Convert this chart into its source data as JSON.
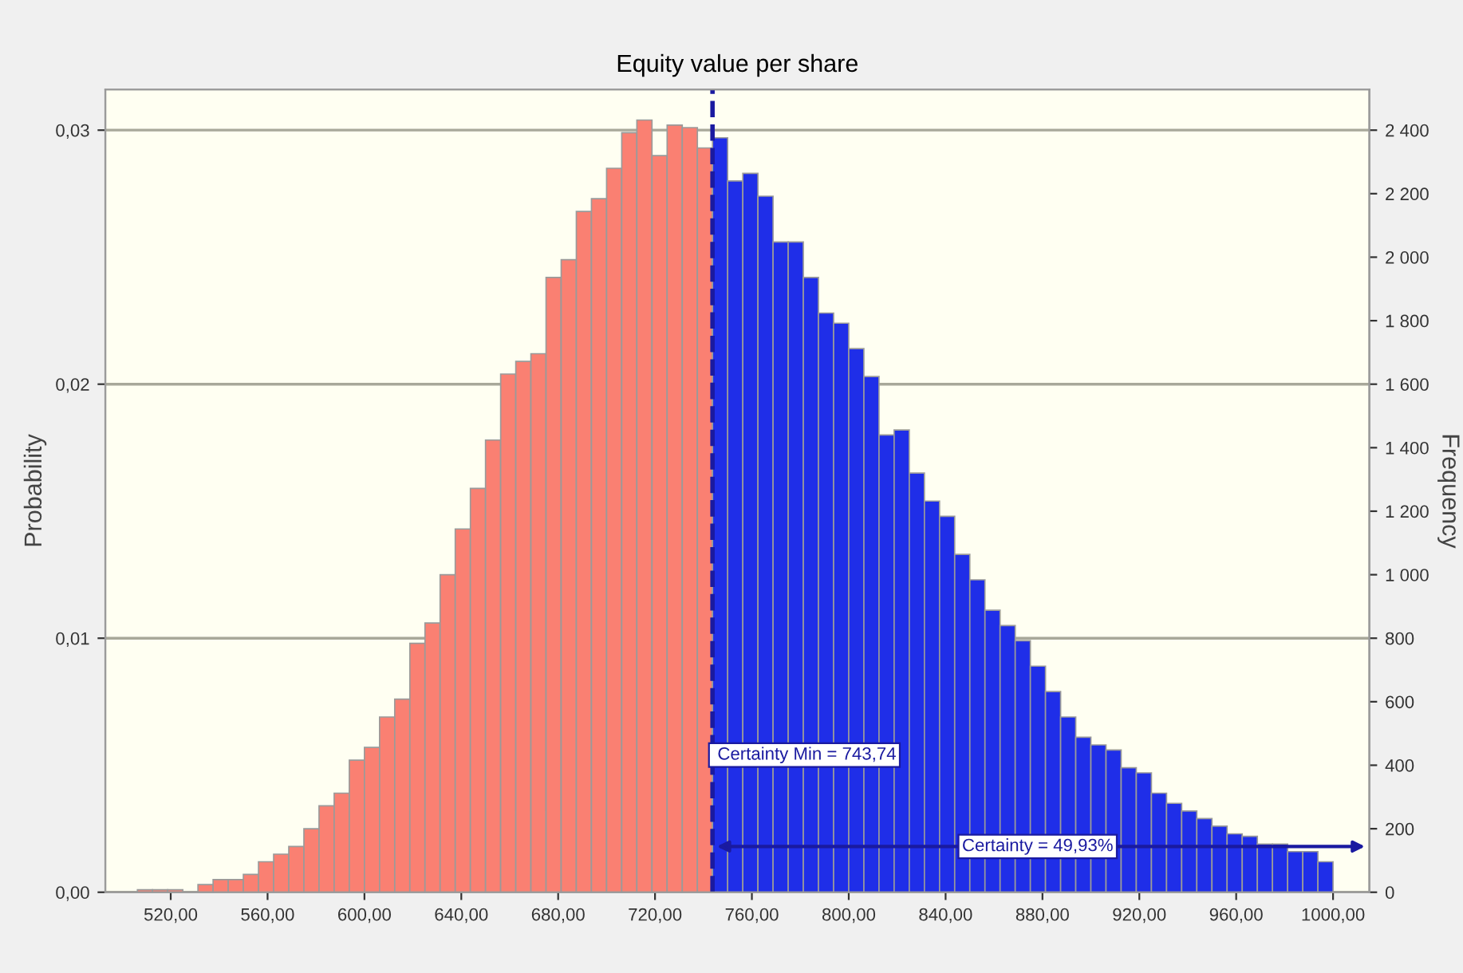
{
  "chart_data": {
    "type": "histogram",
    "title": "Equity value per share",
    "ylabel": "Probability",
    "y2label": "Frequency",
    "bins": [
      506.25,
      512.5,
      518.75,
      525,
      531.25,
      537.5,
      543.75,
      550,
      556.25,
      562.5,
      568.75,
      575,
      581.25,
      587.5,
      593.75,
      600,
      606.25,
      612.5,
      618.75,
      625,
      631.25,
      637.5,
      643.75,
      650,
      656.25,
      662.5,
      668.75,
      675,
      681.25,
      687.5,
      693.75,
      700,
      706.25,
      712.5,
      718.75,
      725,
      731.25,
      737.5,
      743.75,
      750,
      756.25,
      762.5,
      768.75,
      775,
      781.25,
      787.5,
      793.75,
      800,
      806.25,
      812.5,
      818.75,
      825,
      831.25,
      837.5,
      843.75,
      850,
      856.25,
      862.5,
      868.75,
      875,
      881.25,
      887.5,
      893.75,
      900,
      906.25,
      912.5,
      918.75,
      925,
      931.25,
      937.5,
      943.75,
      950,
      956.25,
      962.5,
      968.75,
      975,
      981.25,
      987.5,
      993.75,
      1000
    ],
    "values": [
      0.0001,
      0.0001,
      0.0001,
      0,
      0.0003,
      0.0005,
      0.0005,
      0.0007,
      0.0012,
      0.0015,
      0.0018,
      0.0025,
      0.0034,
      0.0039,
      0.0052,
      0.0057,
      0.0069,
      0.0076,
      0.0098,
      0.0106,
      0.0125,
      0.0143,
      0.0159,
      0.0178,
      0.0204,
      0.0209,
      0.0212,
      0.0242,
      0.0249,
      0.0268,
      0.0273,
      0.0285,
      0.0299,
      0.0304,
      0.029,
      0.0302,
      0.0301,
      0.0293,
      0.0297,
      0.028,
      0.0283,
      0.0274,
      0.0256,
      0.0256,
      0.0242,
      0.0228,
      0.0224,
      0.0214,
      0.0203,
      0.018,
      0.0182,
      0.0165,
      0.0154,
      0.0148,
      0.0133,
      0.0123,
      0.0111,
      0.0105,
      0.0099,
      0.0089,
      0.0079,
      0.0069,
      0.0061,
      0.0058,
      0.0056,
      0.0049,
      0.0047,
      0.0039,
      0.0035,
      0.0032,
      0.0029,
      0.0026,
      0.0023,
      0.0022,
      0.0019,
      0.0019,
      0.0016,
      0.0016,
      0.0012
    ],
    "colors": [
      "#fa8072",
      "#fa8072",
      "#fa8072",
      "#fa8072",
      "#fa8072",
      "#fa8072",
      "#fa8072",
      "#fa8072",
      "#fa8072",
      "#fa8072",
      "#fa8072",
      "#fa8072",
      "#fa8072",
      "#fa8072",
      "#fa8072",
      "#fa8072",
      "#fa8072",
      "#fa8072",
      "#fa8072",
      "#fa8072",
      "#fa8072",
      "#fa8072",
      "#fa8072",
      "#fa8072",
      "#fa8072",
      "#fa8072",
      "#fa8072",
      "#fa8072",
      "#fa8072",
      "#fa8072",
      "#fa8072",
      "#fa8072",
      "#fa8072",
      "#fa8072",
      "#fa8072",
      "#fa8072",
      "#fa8072",
      "#fa8072",
      "#1f2ee8",
      "#1f2ee8",
      "#1f2ee8",
      "#1f2ee8",
      "#1f2ee8",
      "#1f2ee8",
      "#1f2ee8",
      "#1f2ee8",
      "#1f2ee8",
      "#1f2ee8",
      "#1f2ee8",
      "#1f2ee8",
      "#1f2ee8",
      "#1f2ee8",
      "#1f2ee8",
      "#1f2ee8",
      "#1f2ee8",
      "#1f2ee8",
      "#1f2ee8",
      "#1f2ee8",
      "#1f2ee8",
      "#1f2ee8",
      "#1f2ee8",
      "#1f2ee8",
      "#1f2ee8",
      "#1f2ee8",
      "#1f2ee8",
      "#1f2ee8",
      "#1f2ee8",
      "#1f2ee8",
      "#1f2ee8",
      "#1f2ee8",
      "#1f2ee8",
      "#1f2ee8",
      "#1f2ee8",
      "#1f2ee8",
      "#1f2ee8",
      "#1f2ee8",
      "#1f2ee8",
      "#1f2ee8",
      "#1f2ee8"
    ],
    "xlim": [
      493,
      1015
    ],
    "xticks": [
      {
        "value": 520,
        "label": "520,00"
      },
      {
        "value": 560,
        "label": "560,00"
      },
      {
        "value": 600,
        "label": "600,00"
      },
      {
        "value": 640,
        "label": "640,00"
      },
      {
        "value": 680,
        "label": "680,00"
      },
      {
        "value": 720,
        "label": "720,00"
      },
      {
        "value": 760,
        "label": "760,00"
      },
      {
        "value": 800,
        "label": "800,00"
      },
      {
        "value": 840,
        "label": "840,00"
      },
      {
        "value": 880,
        "label": "880,00"
      },
      {
        "value": 920,
        "label": "920,00"
      },
      {
        "value": 960,
        "label": "960,00"
      },
      {
        "value": 1000,
        "label": "1000,00"
      }
    ],
    "ylim": [
      0,
      0.0316
    ],
    "yticks": [
      {
        "value": 0,
        "label": "0,00"
      },
      {
        "value": 0.01,
        "label": "0,01"
      },
      {
        "value": 0.02,
        "label": "0,02"
      },
      {
        "value": 0.03,
        "label": "0,03"
      }
    ],
    "y2lim": [
      0,
      2528
    ],
    "y2ticks": [
      0,
      200,
      400,
      600,
      800,
      {
        "value": 1000,
        "label": "1 000"
      },
      {
        "value": 1200,
        "label": "1 200"
      },
      {
        "value": 1400,
        "label": "1 400"
      },
      {
        "value": 1600,
        "label": "1 600"
      },
      {
        "value": 1800,
        "label": "1 800"
      },
      {
        "value": 2000,
        "label": "2 000"
      },
      {
        "value": 2200,
        "label": "2 200"
      },
      {
        "value": 2400,
        "label": "2 400"
      }
    ],
    "grid": "y",
    "ref_lines": [
      {
        "axis": "x",
        "value": 743.74,
        "color": "#1a1aa0",
        "line_style": "dashed"
      }
    ],
    "annotations": [
      {
        "text": "Certainty Min = 743,74",
        "x": 743.74,
        "y": 0.0054
      },
      {
        "text": "Certainty = 49,93%",
        "x": 878,
        "y": 0.0018
      }
    ]
  }
}
